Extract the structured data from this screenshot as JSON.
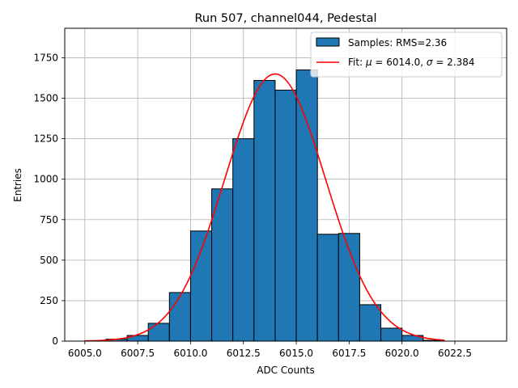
{
  "chart_data": {
    "type": "bar",
    "title": "Run 507, channel044, Pedestal",
    "xlabel": "ADC Counts",
    "ylabel": "Entries",
    "xlim": [
      6004.05,
      6024.95
    ],
    "ylim": [
      0,
      1932
    ],
    "x_ticks": [
      6005.0,
      6007.5,
      6010.0,
      6012.5,
      6015.0,
      6017.5,
      6020.0,
      6022.5
    ],
    "x_tick_labels": [
      "6005.0",
      "6007.5",
      "6010.0",
      "6012.5",
      "6015.0",
      "6017.5",
      "6020.0",
      "6022.5"
    ],
    "y_ticks": [
      0,
      250,
      500,
      750,
      1000,
      1250,
      1500,
      1750
    ],
    "y_tick_labels": [
      "0",
      "250",
      "500",
      "750",
      "1000",
      "1250",
      "1500",
      "1750"
    ],
    "grid": true,
    "legend_position": "top-right",
    "series": [
      {
        "name": "Samples: RMS=2.36",
        "kind": "histogram",
        "color": "#1f77b4",
        "edge_color": "#000000",
        "bin_edges": [
          6005,
          6006,
          6007,
          6008,
          6009,
          6010,
          6011,
          6012,
          6013,
          6014,
          6015,
          6016,
          6017,
          6018,
          6019,
          6020,
          6021,
          6022,
          6023,
          6024
        ],
        "values": [
          1,
          12,
          35,
          110,
          300,
          680,
          940,
          1250,
          1610,
          1550,
          1675,
          660,
          665,
          225,
          80,
          35,
          5,
          0,
          0
        ]
      },
      {
        "name_parts": [
          "Fit: ",
          "μ",
          " = 6014.0, ",
          "σ",
          " = 2.384"
        ],
        "kind": "gaussian_fit",
        "color": "#ff0000",
        "mu": 6014.0,
        "sigma": 2.384,
        "amplitude": 1650,
        "x_range": [
          6005,
          6022
        ]
      }
    ]
  }
}
